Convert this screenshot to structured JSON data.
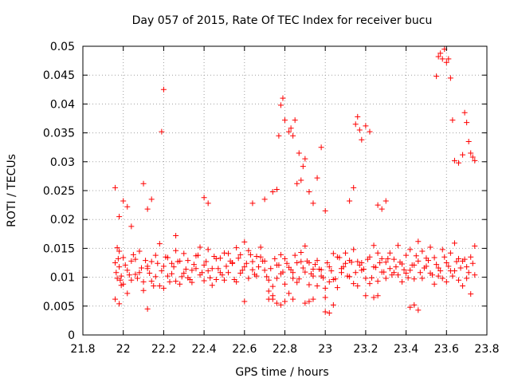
{
  "chart_data": {
    "type": "scatter",
    "title": "Day 057 of 2015, Rate Of TEC Index for receiver bucu",
    "xlabel": "GPS time / hours",
    "ylabel": "ROTI / TECUs",
    "xlim": [
      21.8,
      23.8
    ],
    "ylim": [
      0,
      0.05
    ],
    "x_ticks": [
      "21.8",
      "22",
      "22.2",
      "22.4",
      "22.6",
      "22.8",
      "23",
      "23.2",
      "23.4",
      "23.6",
      "23.8"
    ],
    "y_ticks": [
      "0",
      "0.005",
      "0.01",
      "0.015",
      "0.02",
      "0.025",
      "0.03",
      "0.035",
      "0.04",
      "0.045",
      "0.05"
    ],
    "grid": true,
    "marker": "plus",
    "marker_color": "#ff0000",
    "x": [
      21.96,
      21.97,
      21.98,
      21.99,
      22.0,
      22.02,
      22.04,
      22.06,
      22.08,
      22.1,
      22.12,
      22.14,
      22.16,
      22.18,
      22.2,
      22.22,
      22.24,
      22.26,
      22.28,
      22.3,
      22.32,
      22.34,
      22.36,
      22.38,
      22.4,
      22.42,
      22.44,
      22.46,
      22.48,
      22.5,
      22.52,
      22.54,
      22.56,
      22.58,
      22.6,
      22.62,
      22.64,
      22.66,
      22.68,
      22.7,
      22.72,
      22.74,
      22.76,
      22.78,
      22.8,
      22.82,
      22.84,
      22.86,
      22.88,
      22.9,
      22.92,
      22.94,
      22.96,
      22.98,
      23.0,
      23.02,
      23.04,
      23.06,
      23.08,
      23.1,
      23.12,
      23.14,
      23.16,
      23.18,
      23.2,
      23.22,
      23.24,
      23.26,
      23.28,
      23.3,
      23.32,
      23.34,
      23.36,
      23.38,
      23.4,
      23.42,
      23.44,
      23.46,
      23.48,
      23.5,
      23.52,
      23.54,
      23.56,
      23.58,
      23.6,
      23.62,
      23.64,
      23.66,
      23.68,
      23.7,
      23.72,
      23.74,
      21.96,
      21.97,
      21.98,
      21.99,
      22.0,
      22.02,
      22.04,
      22.06,
      22.08,
      22.1,
      22.12,
      22.14,
      22.16,
      22.18,
      22.2,
      22.22,
      22.24,
      22.26,
      22.28,
      22.3,
      22.32,
      22.34,
      22.36,
      22.38,
      22.4,
      22.42,
      22.44,
      22.46,
      22.48,
      22.5,
      22.52,
      22.54,
      22.56,
      22.58,
      22.6,
      22.62,
      22.64,
      22.66,
      22.68,
      22.7,
      22.72,
      22.74,
      22.76,
      22.78,
      22.8,
      22.82,
      22.84,
      22.86,
      22.88,
      22.9,
      22.92,
      22.94,
      22.96,
      22.98,
      23.0,
      23.02,
      23.04,
      23.06,
      23.08,
      23.1,
      23.12,
      23.14,
      23.16,
      23.18,
      23.2,
      23.22,
      23.24,
      23.26,
      23.28,
      23.3,
      23.32,
      23.34,
      23.36,
      23.38,
      23.4,
      23.42,
      23.44,
      23.46,
      23.48,
      23.5,
      23.52,
      23.54,
      23.56,
      23.58,
      23.6,
      23.62,
      23.64,
      23.66,
      23.68,
      23.7,
      23.72,
      23.74,
      21.965,
      21.975,
      21.985,
      22.01,
      22.03,
      22.05,
      22.07,
      22.09,
      22.11,
      22.13,
      22.15,
      22.17,
      22.19,
      22.21,
      22.23,
      22.25,
      22.27,
      22.29,
      22.31,
      22.33,
      22.35,
      22.37,
      22.39,
      22.41,
      22.43,
      22.45,
      22.47,
      22.49,
      22.51,
      22.53,
      22.55,
      22.57,
      22.59,
      22.61,
      22.63,
      22.65,
      22.67,
      22.69,
      22.71,
      22.73,
      22.75,
      22.77,
      22.79,
      22.81,
      22.83,
      22.85,
      22.87,
      22.89,
      22.91,
      22.93,
      22.95,
      22.97,
      22.99,
      23.01,
      23.03,
      23.05,
      23.07,
      23.09,
      23.11,
      23.13,
      23.15,
      23.17,
      23.19,
      23.21,
      23.23,
      23.25,
      23.27,
      23.29,
      23.31,
      23.33,
      23.35,
      23.37,
      23.39,
      23.41,
      23.43,
      23.45,
      23.47,
      23.49,
      23.51,
      23.53,
      23.55,
      23.57,
      23.59,
      23.61,
      23.63,
      23.65,
      23.67,
      23.69,
      23.71,
      23.73,
      21.96,
      21.98,
      22.0,
      22.02,
      22.04,
      22.1,
      22.12,
      22.14,
      22.19,
      22.2,
      22.26,
      22.4,
      22.42,
      22.64,
      22.7,
      22.74,
      22.76,
      22.77,
      22.78,
      22.79,
      22.8,
      22.82,
      22.83,
      22.84,
      22.85,
      22.86,
      22.87,
      22.88,
      22.89,
      22.9,
      22.92,
      22.94,
      22.96,
      22.98,
      23.0,
      23.12,
      23.14,
      23.15,
      23.16,
      23.17,
      23.18,
      23.2,
      23.22,
      23.26,
      23.28,
      23.3,
      23.55,
      23.56,
      23.57,
      23.58,
      23.59,
      23.6,
      23.61,
      23.62,
      23.63,
      23.64,
      23.66,
      23.68,
      23.69,
      23.7,
      23.71,
      23.72,
      23.73,
      23.74,
      22.76,
      22.78,
      22.8,
      22.84,
      22.9,
      22.92,
      22.94,
      23.0,
      23.02,
      23.04,
      23.24,
      23.26,
      23.42,
      23.44,
      23.46,
      22.72,
      22.74,
      21.98,
      22.12,
      22.6
    ],
    "y": [
      0.0125,
      0.0098,
      0.0145,
      0.0102,
      0.0088,
      0.0112,
      0.0095,
      0.0131,
      0.0108,
      0.0092,
      0.0115,
      0.0127,
      0.0101,
      0.0085,
      0.0119,
      0.0134,
      0.0106,
      0.0093,
      0.0128,
      0.0141,
      0.0099,
      0.0112,
      0.0137,
      0.0104,
      0.0121,
      0.0148,
      0.0115,
      0.0096,
      0.0133,
      0.0142,
      0.0108,
      0.0125,
      0.0151,
      0.0139,
      0.0118,
      0.0146,
      0.0127,
      0.0102,
      0.0135,
      0.0112,
      0.0095,
      0.0084,
      0.0121,
      0.0106,
      0.0132,
      0.0117,
      0.0098,
      0.0125,
      0.0143,
      0.0109,
      0.0087,
      0.0114,
      0.0129,
      0.0102,
      0.0081,
      0.0118,
      0.0096,
      0.0135,
      0.0108,
      0.0124,
      0.0101,
      0.0089,
      0.0127,
      0.0112,
      0.0098,
      0.0135,
      0.0118,
      0.0142,
      0.0109,
      0.0126,
      0.0115,
      0.0131,
      0.0104,
      0.0123,
      0.0138,
      0.0112,
      0.0097,
      0.0128,
      0.0145,
      0.0119,
      0.0107,
      0.0134,
      0.0116,
      0.0098,
      0.0125,
      0.0142,
      0.0111,
      0.0095,
      0.0128,
      0.0118,
      0.0135,
      0.0104,
      0.0062,
      0.0151,
      0.0118,
      0.0086,
      0.0134,
      0.0072,
      0.0128,
      0.0105,
      0.0145,
      0.0077,
      0.0119,
      0.0093,
      0.0138,
      0.0158,
      0.0081,
      0.0102,
      0.0124,
      0.0146,
      0.0088,
      0.0107,
      0.0129,
      0.0091,
      0.0115,
      0.0152,
      0.0094,
      0.0111,
      0.0086,
      0.0132,
      0.0108,
      0.0095,
      0.0141,
      0.0124,
      0.0092,
      0.0107,
      0.0161,
      0.0098,
      0.0113,
      0.0136,
      0.0152,
      0.0128,
      0.0076,
      0.0062,
      0.0098,
      0.0139,
      0.0088,
      0.0072,
      0.0108,
      0.0091,
      0.0127,
      0.0154,
      0.0125,
      0.0102,
      0.0085,
      0.0113,
      0.0065,
      0.0092,
      0.0141,
      0.0082,
      0.0115,
      0.0142,
      0.0129,
      0.0148,
      0.0085,
      0.0125,
      0.0068,
      0.0089,
      0.0155,
      0.0093,
      0.0132,
      0.0098,
      0.0142,
      0.0108,
      0.0155,
      0.0092,
      0.0107,
      0.0148,
      0.0121,
      0.0162,
      0.0098,
      0.0133,
      0.0152,
      0.0088,
      0.0102,
      0.0148,
      0.0092,
      0.0111,
      0.0159,
      0.0132,
      0.0085,
      0.0098,
      0.0071,
      0.0154,
      0.0108,
      0.0132,
      0.0095,
      0.0121,
      0.0104,
      0.0139,
      0.0098,
      0.0116,
      0.0129,
      0.0107,
      0.0085,
      0.0124,
      0.0111,
      0.0135,
      0.0092,
      0.0118,
      0.0127,
      0.0101,
      0.0114,
      0.0096,
      0.0122,
      0.0138,
      0.0108,
      0.0127,
      0.0099,
      0.0136,
      0.0115,
      0.0104,
      0.0119,
      0.0128,
      0.0096,
      0.0133,
      0.0112,
      0.0124,
      0.0139,
      0.0105,
      0.0118,
      0.0128,
      0.0101,
      0.0115,
      0.0132,
      0.0121,
      0.0109,
      0.0124,
      0.0113,
      0.0138,
      0.0097,
      0.0116,
      0.0128,
      0.0106,
      0.0122,
      0.0114,
      0.0099,
      0.0125,
      0.0111,
      0.0097,
      0.0134,
      0.0118,
      0.0102,
      0.0126,
      0.0108,
      0.0121,
      0.0114,
      0.0131,
      0.0099,
      0.0117,
      0.0125,
      0.0109,
      0.0132,
      0.0104,
      0.0118,
      0.0126,
      0.0113,
      0.0099,
      0.0121,
      0.0137,
      0.0108,
      0.0116,
      0.0129,
      0.0104,
      0.0122,
      0.0111,
      0.0135,
      0.0119,
      0.0102,
      0.0127,
      0.0116,
      0.0131,
      0.0108,
      0.0124,
      0.0255,
      0.0205,
      0.0232,
      0.0222,
      0.0188,
      0.0262,
      0.0218,
      0.0235,
      0.0352,
      0.0425,
      0.0172,
      0.0238,
      0.0228,
      0.0228,
      0.0235,
      0.0248,
      0.0252,
      0.0345,
      0.0398,
      0.041,
      0.0372,
      0.0352,
      0.0358,
      0.0345,
      0.0372,
      0.0262,
      0.0315,
      0.0268,
      0.0292,
      0.0305,
      0.0248,
      0.0228,
      0.0272,
      0.0325,
      0.0215,
      0.0232,
      0.0255,
      0.0365,
      0.0378,
      0.0355,
      0.0338,
      0.0362,
      0.0352,
      0.0225,
      0.0218,
      0.0232,
      0.0448,
      0.0482,
      0.0488,
      0.0478,
      0.0495,
      0.0472,
      0.0478,
      0.0445,
      0.0372,
      0.0302,
      0.0298,
      0.0312,
      0.0385,
      0.0368,
      0.0335,
      0.0315,
      0.0308,
      0.0302,
      0.0055,
      0.0052,
      0.0058,
      0.0062,
      0.0055,
      0.0058,
      0.0062,
      0.004,
      0.0038,
      0.0052,
      0.0065,
      0.0068,
      0.0048,
      0.0052,
      0.0043,
      0.0062,
      0.0068,
      0.0054,
      0.0045,
      0.0058
    ]
  }
}
